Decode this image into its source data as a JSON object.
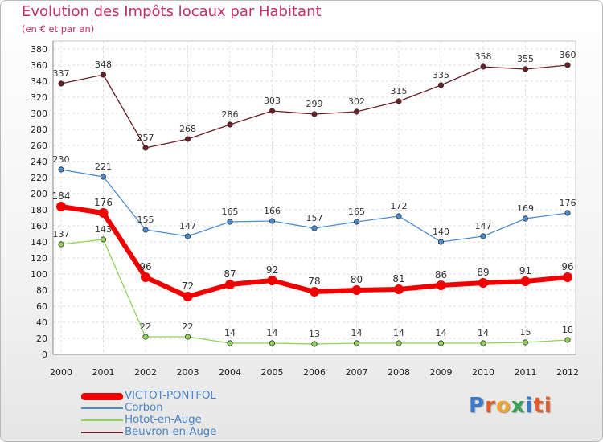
{
  "header": {
    "title": "Evolution des Impôts locaux par Habitant",
    "subtitle": "(en € et par an)"
  },
  "logo": {
    "letters": [
      "P",
      "r",
      "o",
      "x",
      "i",
      "ti"
    ]
  },
  "chart_data": {
    "type": "line",
    "title": "Evolution des Impôts locaux par Habitant",
    "subtitle": "(en € et par an)",
    "xlabel": "",
    "ylabel": "",
    "x": [
      "2000",
      "2001",
      "2002",
      "2003",
      "2004",
      "2005",
      "2006",
      "2007",
      "2008",
      "2009",
      "2010",
      "2011",
      "2012"
    ],
    "ylim": [
      0,
      380
    ],
    "yticks": [
      0,
      20,
      40,
      60,
      80,
      100,
      120,
      140,
      160,
      180,
      200,
      220,
      240,
      260,
      280,
      300,
      320,
      340,
      360,
      380
    ],
    "grid": true,
    "legend_position": "bottom-left",
    "series": [
      {
        "name": "Beuvron-en-Auge",
        "color": "#6b1e23",
        "values": [
          337,
          348,
          257,
          268,
          286,
          303,
          299,
          302,
          315,
          335,
          358,
          355,
          360
        ]
      },
      {
        "name": "Corbon",
        "color": "#4a8ccf",
        "values": [
          230,
          221,
          155,
          147,
          165,
          166,
          157,
          165,
          172,
          140,
          147,
          169,
          176
        ]
      },
      {
        "name": "Hotot-en-Auge",
        "color": "#8fd45a",
        "values": [
          137,
          143,
          22,
          22,
          14,
          14,
          13,
          14,
          14,
          14,
          14,
          15,
          18
        ]
      },
      {
        "name": "VICTOT-PONTFOL",
        "color": "#f00000",
        "values": [
          184,
          176,
          96,
          72,
          87,
          92,
          78,
          80,
          81,
          86,
          89,
          91,
          96
        ]
      }
    ],
    "legend": [
      "VICTOT-PONTFOL",
      "Corbon",
      "Hotot-en-Auge",
      "Beuvron-en-Auge"
    ]
  }
}
